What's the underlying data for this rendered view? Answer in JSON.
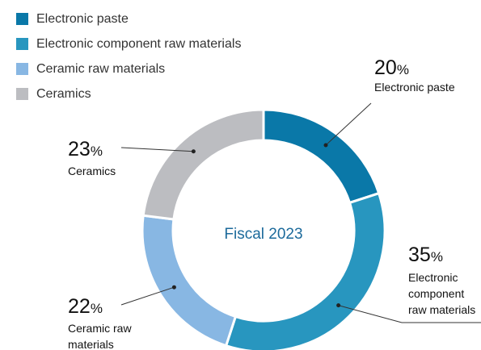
{
  "chart_data": {
    "type": "pie",
    "center_label": "Fiscal 2023",
    "center_label_color": "#1c6a9b",
    "slices": [
      {
        "name": "Electronic paste",
        "value": 20,
        "color": "#0a78a8",
        "label_lines": [
          "Electronic paste"
        ]
      },
      {
        "name": "Electronic component raw materials",
        "value": 35,
        "color": "#2896bf",
        "label_lines": [
          "Electronic",
          "component",
          "raw materials"
        ]
      },
      {
        "name": "Ceramic raw materials",
        "value": 22,
        "color": "#88b7e3",
        "label_lines": [
          "Ceramic raw",
          "materials"
        ]
      },
      {
        "name": "Ceramics",
        "value": 23,
        "color": "#bcbdc1",
        "label_lines": [
          "Ceramics"
        ]
      }
    ],
    "percent_symbol": "%",
    "legend_position": "top-left"
  }
}
